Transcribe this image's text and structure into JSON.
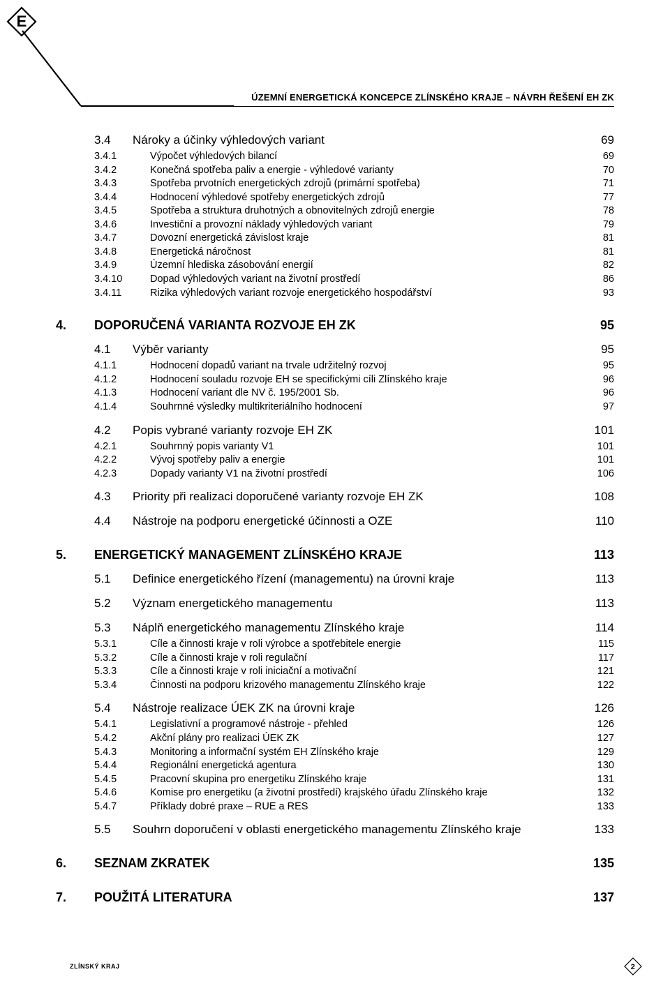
{
  "header": {
    "title": "ÚZEMNÍ ENERGETICKÁ KONCEPCE ZLÍNSKÉHO KRAJE – NÁVRH ŘEŠENÍ EH ZK"
  },
  "logo": {
    "letter": "E",
    "stroke": "#000000",
    "line_stroke": "#000000"
  },
  "footer": {
    "left": "ZLÍNSKÝ KRAJ",
    "page": "2"
  },
  "toc": [
    {
      "lvl": 2,
      "num": "3.4",
      "title": "Nároky a účinky výhledových variant",
      "page": "69",
      "first": true
    },
    {
      "lvl": 3,
      "num": "3.4.1",
      "title": "Výpočet výhledových bilancí",
      "page": "69"
    },
    {
      "lvl": 3,
      "num": "3.4.2",
      "title": "Konečná spotřeba paliv a energie  - výhledové varianty",
      "page": "70"
    },
    {
      "lvl": 3,
      "num": "3.4.3",
      "title": "Spotřeba prvotních energetických zdrojů (primární spotřeba)",
      "page": "71"
    },
    {
      "lvl": 3,
      "num": "3.4.4",
      "title": "Hodnocení výhledové spotřeby energetických zdrojů",
      "page": "77"
    },
    {
      "lvl": 3,
      "num": "3.4.5",
      "title": "Spotřeba a struktura druhotných a obnovitelných zdrojů energie",
      "page": "78"
    },
    {
      "lvl": 3,
      "num": "3.4.6",
      "title": "Investiční a provozní náklady výhledových variant",
      "page": "79"
    },
    {
      "lvl": 3,
      "num": "3.4.7",
      "title": "Dovozní energetická závislost kraje",
      "page": "81"
    },
    {
      "lvl": 3,
      "num": "3.4.8",
      "title": "Energetická náročnost",
      "page": "81"
    },
    {
      "lvl": 3,
      "num": "3.4.9",
      "title": "Územní hlediska zásobování energií",
      "page": "82"
    },
    {
      "lvl": 3,
      "num": "3.4.10",
      "title": "Dopad výhledových variant na životní prostředí",
      "page": "86"
    },
    {
      "lvl": 3,
      "num": "3.4.11",
      "title": "Rizika výhledových variant rozvoje energetického hospodářství",
      "page": "93"
    },
    {
      "lvl": 1,
      "num": "4.",
      "title": "DOPORUČENÁ VARIANTA ROZVOJE EH ZK",
      "page": "95"
    },
    {
      "lvl": 2,
      "num": "4.1",
      "title": "Výběr varianty",
      "page": "95"
    },
    {
      "lvl": 3,
      "num": "4.1.1",
      "title": "Hodnocení dopadů variant na trvale udržitelný rozvoj",
      "page": "95"
    },
    {
      "lvl": 3,
      "num": "4.1.2",
      "title": "Hodnocení souladu rozvoje EH se specifickými cíli Zlínského kraje",
      "page": "96"
    },
    {
      "lvl": 3,
      "num": "4.1.3",
      "title": "Hodnocení variant dle NV č. 195/2001 Sb.",
      "page": "96"
    },
    {
      "lvl": 3,
      "num": "4.1.4",
      "title": "Souhrnné výsledky multikriteriálního hodnocení",
      "page": "97"
    },
    {
      "lvl": 2,
      "num": "4.2",
      "title": "Popis vybrané varianty rozvoje EH ZK",
      "page": "101"
    },
    {
      "lvl": 3,
      "num": "4.2.1",
      "title": "Souhrnný popis varianty V1",
      "page": "101"
    },
    {
      "lvl": 3,
      "num": "4.2.2",
      "title": "Vývoj spotřeby paliv a energie",
      "page": "101"
    },
    {
      "lvl": 3,
      "num": "4.2.3",
      "title": "Dopady varianty V1 na životní prostředí",
      "page": "106"
    },
    {
      "lvl": 2,
      "num": "4.3",
      "title": "Priority při realizaci doporučené varianty rozvoje EH ZK",
      "page": "108"
    },
    {
      "lvl": 2,
      "num": "4.4",
      "title": "Nástroje  na podporu energetické účinnosti a OZE",
      "page": "110"
    },
    {
      "lvl": 1,
      "num": "5.",
      "title": "ENERGETICKÝ MANAGEMENT ZLÍNSKÉHO KRAJE",
      "page": "113"
    },
    {
      "lvl": 2,
      "num": "5.1",
      "title": "Definice energetického řízení (managementu) na úrovni kraje",
      "page": "113"
    },
    {
      "lvl": 2,
      "num": "5.2",
      "title": "Význam energetického managementu",
      "page": "113"
    },
    {
      "lvl": 2,
      "num": "5.3",
      "title": "Náplň energetického managementu Zlínského kraje",
      "page": "114"
    },
    {
      "lvl": 3,
      "num": "5.3.1",
      "title": "Cíle a činnosti kraje v roli výrobce a spotřebitele energie",
      "page": "115"
    },
    {
      "lvl": 3,
      "num": "5.3.2",
      "title": "Cíle a činnosti kraje v roli regulační",
      "page": "117"
    },
    {
      "lvl": 3,
      "num": "5.3.3",
      "title": "Cíle a činnosti kraje v roli iniciační a motivační",
      "page": "121"
    },
    {
      "lvl": 3,
      "num": "5.3.4",
      "title": "Činnosti na podporu  krizového managementu Zlínského kraje",
      "page": "122"
    },
    {
      "lvl": 2,
      "num": "5.4",
      "title": "Nástroje realizace  ÚEK ZK na úrovni kraje",
      "page": "126"
    },
    {
      "lvl": 3,
      "num": "5.4.1",
      "title": "Legislativní a programové nástroje - přehled",
      "page": "126"
    },
    {
      "lvl": 3,
      "num": "5.4.2",
      "title": "Akční plány pro realizaci ÚEK ZK",
      "page": "127"
    },
    {
      "lvl": 3,
      "num": "5.4.3",
      "title": "Monitoring a informační systém EH Zlínského kraje",
      "page": "129"
    },
    {
      "lvl": 3,
      "num": "5.4.4",
      "title": "Regionální energetická agentura",
      "page": "130"
    },
    {
      "lvl": 3,
      "num": "5.4.5",
      "title": "Pracovní skupina pro energetiku Zlínského kraje",
      "page": "131"
    },
    {
      "lvl": 3,
      "num": "5.4.6",
      "title": "Komise pro energetiku (a životní prostředí)  krajského úřadu Zlínského kraje",
      "page": "132"
    },
    {
      "lvl": 3,
      "num": "5.4.7",
      "title": "Příklady dobré praxe – RUE a RES",
      "page": "133"
    },
    {
      "lvl": 2,
      "num": "5.5",
      "title": "Souhrn doporučení v oblasti energetického managementu Zlínského kraje",
      "page": "133"
    },
    {
      "lvl": 1,
      "num": "6.",
      "title": "SEZNAM ZKRATEK",
      "page": "135"
    },
    {
      "lvl": 1,
      "num": "7.",
      "title": "POUŽITÁ LITERATURA",
      "page": "137"
    }
  ]
}
